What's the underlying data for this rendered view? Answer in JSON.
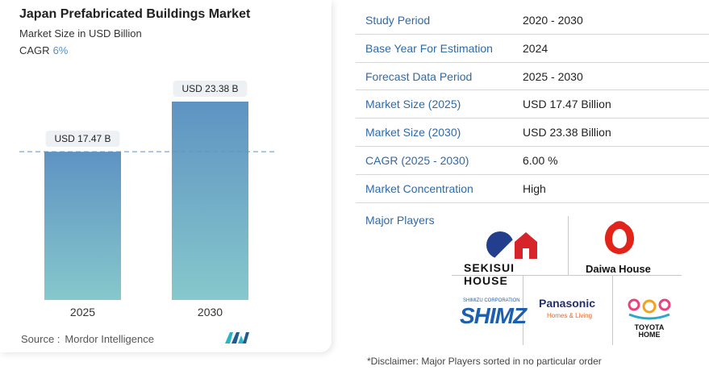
{
  "chart_data": {
    "type": "bar",
    "title": "Japan Prefabricated Buildings Market",
    "subtitle": "Market Size in USD Billion",
    "cagr_label": "CAGR",
    "cagr_value": "6%",
    "categories": [
      "2025",
      "2030"
    ],
    "values": [
      17.47,
      23.38
    ],
    "data_labels": [
      "USD 17.47 B",
      "USD 23.38 B"
    ],
    "colors": {
      "bar_top": "#5e93c2",
      "bar_bottom": "#86c8cc",
      "reference_line": "#5e93c2"
    }
  },
  "source": {
    "label": "Source :",
    "name": "Mordor Intelligence"
  },
  "table": {
    "rows": [
      {
        "label": "Study Period",
        "value": "2020 - 2030"
      },
      {
        "label": "Base Year For Estimation",
        "value": "2024"
      },
      {
        "label": "Forecast Data Period",
        "value": "2025 - 2030"
      },
      {
        "label": "Market Size (2025)",
        "value": "USD 17.47 Billion"
      },
      {
        "label": "Market Size (2030)",
        "value": "USD 23.38 Billion"
      },
      {
        "label": "CAGR (2025 - 2030)",
        "value": "6.00 %"
      },
      {
        "label": "Market Concentration",
        "value": "High"
      }
    ],
    "players_label": "Major Players"
  },
  "players": {
    "sekisui": "SEKISUI HOUSE",
    "daiwa": "Daiwa House",
    "shimz_small": "SHIMIZU CORPORATION",
    "shimz": "SHIMZ",
    "panasonic": "Panasonic",
    "panasonic_sub": "Homes & Living",
    "toyota_line1": "TOYOTA",
    "toyota_line2": "HOME"
  },
  "disclaimer": "*Disclaimer: Major Players sorted in no particular order"
}
